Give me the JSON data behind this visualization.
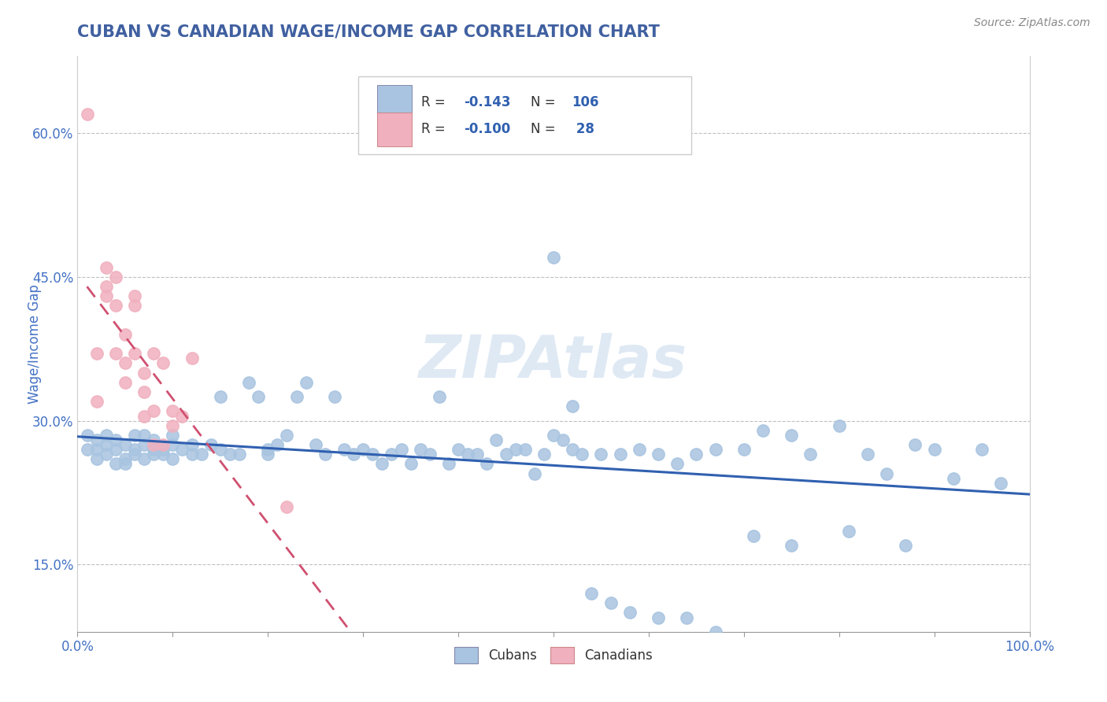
{
  "title": "CUBAN VS CANADIAN WAGE/INCOME GAP CORRELATION CHART",
  "source_text": "Source: ZipAtlas.com",
  "ylabel": "Wage/Income Gap",
  "watermark": "ZIPAtlas",
  "xlim": [
    0.0,
    1.0
  ],
  "ylim": [
    0.08,
    0.68
  ],
  "yticks": [
    0.15,
    0.3,
    0.45,
    0.6
  ],
  "ytick_labels": [
    "15.0%",
    "30.0%",
    "45.0%",
    "60.0%"
  ],
  "cuban_color": "#a8c4e0",
  "canadian_color": "#f0b0be",
  "trendline_cuban_color": "#3060b0",
  "trendline_canadian_color": "#d05070",
  "background_color": "#ffffff",
  "grid_color": "#c0c0c0",
  "title_color": "#4060a0",
  "axis_label_color": "#4472c4",
  "tick_label_color": "#4472c4",
  "cubans_scatter_x": [
    0.01,
    0.01,
    0.02,
    0.02,
    0.02,
    0.03,
    0.03,
    0.03,
    0.04,
    0.04,
    0.04,
    0.05,
    0.05,
    0.05,
    0.06,
    0.06,
    0.06,
    0.07,
    0.07,
    0.07,
    0.08,
    0.08,
    0.08,
    0.09,
    0.09,
    0.1,
    0.1,
    0.1,
    0.11,
    0.12,
    0.12,
    0.13,
    0.14,
    0.15,
    0.15,
    0.16,
    0.17,
    0.18,
    0.19,
    0.2,
    0.2,
    0.21,
    0.22,
    0.23,
    0.24,
    0.25,
    0.26,
    0.27,
    0.28,
    0.29,
    0.3,
    0.31,
    0.32,
    0.33,
    0.34,
    0.35,
    0.36,
    0.37,
    0.38,
    0.39,
    0.4,
    0.41,
    0.42,
    0.43,
    0.44,
    0.45,
    0.46,
    0.47,
    0.48,
    0.49,
    0.5,
    0.51,
    0.52,
    0.53,
    0.55,
    0.57,
    0.59,
    0.61,
    0.63,
    0.65,
    0.67,
    0.7,
    0.72,
    0.75,
    0.77,
    0.8,
    0.83,
    0.85,
    0.88,
    0.9,
    0.92,
    0.95,
    0.97,
    0.5,
    0.52,
    0.54,
    0.56,
    0.58,
    0.61,
    0.64,
    0.67,
    0.71,
    0.75,
    0.81,
    0.87
  ],
  "cubans_scatter_y": [
    0.27,
    0.285,
    0.27,
    0.26,
    0.28,
    0.265,
    0.275,
    0.285,
    0.255,
    0.27,
    0.28,
    0.26,
    0.275,
    0.255,
    0.27,
    0.285,
    0.265,
    0.26,
    0.275,
    0.285,
    0.265,
    0.27,
    0.28,
    0.265,
    0.27,
    0.26,
    0.275,
    0.285,
    0.27,
    0.265,
    0.275,
    0.265,
    0.275,
    0.325,
    0.27,
    0.265,
    0.265,
    0.34,
    0.325,
    0.265,
    0.27,
    0.275,
    0.285,
    0.325,
    0.34,
    0.275,
    0.265,
    0.325,
    0.27,
    0.265,
    0.27,
    0.265,
    0.255,
    0.265,
    0.27,
    0.255,
    0.27,
    0.265,
    0.325,
    0.255,
    0.27,
    0.265,
    0.265,
    0.255,
    0.28,
    0.265,
    0.27,
    0.27,
    0.245,
    0.265,
    0.285,
    0.28,
    0.315,
    0.265,
    0.265,
    0.265,
    0.27,
    0.265,
    0.255,
    0.265,
    0.27,
    0.27,
    0.29,
    0.285,
    0.265,
    0.295,
    0.265,
    0.245,
    0.275,
    0.27,
    0.24,
    0.27,
    0.235,
    0.47,
    0.27,
    0.12,
    0.11,
    0.1,
    0.095,
    0.095,
    0.08,
    0.18,
    0.17,
    0.185,
    0.17
  ],
  "canadians_scatter_x": [
    0.01,
    0.02,
    0.02,
    0.03,
    0.03,
    0.03,
    0.04,
    0.04,
    0.04,
    0.05,
    0.05,
    0.05,
    0.06,
    0.06,
    0.06,
    0.07,
    0.07,
    0.07,
    0.08,
    0.08,
    0.08,
    0.09,
    0.09,
    0.1,
    0.1,
    0.11,
    0.12,
    0.22
  ],
  "canadians_scatter_y": [
    0.62,
    0.32,
    0.37,
    0.43,
    0.44,
    0.46,
    0.45,
    0.42,
    0.37,
    0.36,
    0.34,
    0.39,
    0.43,
    0.42,
    0.37,
    0.35,
    0.33,
    0.305,
    0.37,
    0.275,
    0.31,
    0.36,
    0.275,
    0.295,
    0.31,
    0.305,
    0.365,
    0.21
  ]
}
